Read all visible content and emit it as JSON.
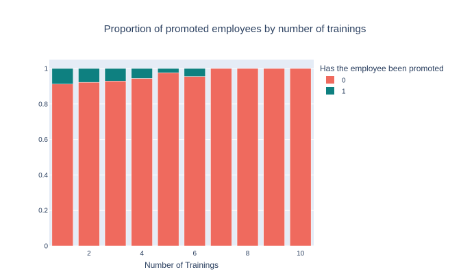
{
  "chart_data": {
    "type": "bar",
    "barmode": "stack",
    "title": "Proportion of promoted employees by number of trainings",
    "xlabel": "Number of Trainings",
    "ylabel": "",
    "x": [
      1,
      2,
      3,
      4,
      5,
      6,
      7,
      8,
      9,
      10
    ],
    "x_ticks": [
      "2",
      "4",
      "6",
      "8",
      "10"
    ],
    "y_ticks": [
      "0",
      "0.2",
      "0.4",
      "0.6",
      "0.8",
      "1"
    ],
    "ylim": [
      0,
      1.05
    ],
    "legend": {
      "title": "Has the employee been promoted",
      "placement": "right"
    },
    "series": [
      {
        "name": "0",
        "color": "#EF6A5E",
        "values": [
          0.912,
          0.922,
          0.929,
          0.944,
          0.976,
          0.955,
          1.0,
          1.0,
          1.0,
          1.0
        ]
      },
      {
        "name": "1",
        "color": "#0E8080",
        "values": [
          0.088,
          0.078,
          0.071,
          0.056,
          0.024,
          0.045,
          0.0,
          0.0,
          0.0,
          0.0
        ]
      }
    ],
    "plot_background": "#E5ECF6",
    "grid": true
  }
}
